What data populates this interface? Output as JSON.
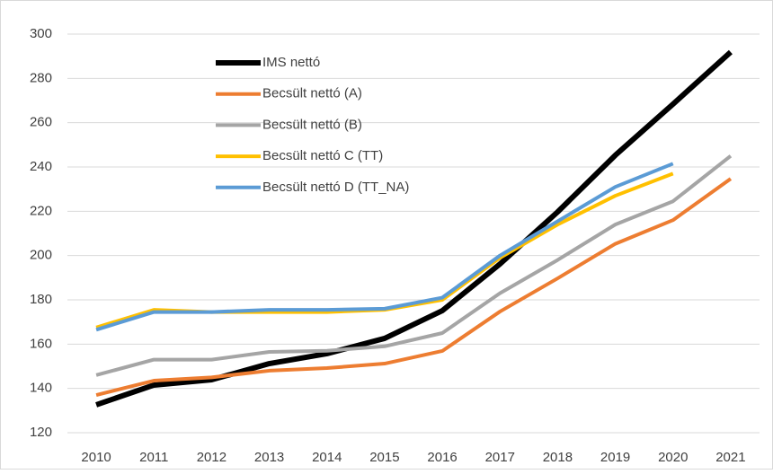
{
  "chart_data": {
    "type": "line",
    "x": [
      2010,
      2011,
      2012,
      2013,
      2014,
      2015,
      2016,
      2017,
      2018,
      2019,
      2020,
      2021
    ],
    "series": [
      {
        "name": "IMS nettó",
        "color": "#000000",
        "values": [
          132.6,
          141.5,
          143.9,
          151.2,
          155.7,
          162.6,
          175.1,
          196.2,
          219.7,
          245.3,
          268.4,
          291.9
        ]
      },
      {
        "name": "Becsült nettó (A)",
        "color": "#ed7d31",
        "values": [
          137,
          143.5,
          145,
          148,
          149.2,
          151.2,
          156.9,
          174.7,
          189.7,
          205.3,
          216,
          234.7
        ]
      },
      {
        "name": "Becsült nettó (B)",
        "color": "#a5a5a5",
        "values": [
          146,
          153,
          153,
          156.5,
          157,
          159,
          165,
          183,
          198,
          214,
          224.5,
          245
        ]
      },
      {
        "name": "Becsült nettó C (TT)",
        "color": "#ffc000",
        "values": [
          167.5,
          175.5,
          174.5,
          174.5,
          174.5,
          175.5,
          180,
          199,
          214,
          227,
          237,
          null
        ]
      },
      {
        "name": "Becsült nettó D (TT_NA)",
        "color": "#5b9bd5",
        "values": [
          166.5,
          174.5,
          174.5,
          175.5,
          175.5,
          176,
          181,
          200,
          215.5,
          231,
          241.5,
          null
        ]
      }
    ],
    "xlim": [
      2009.5,
      2021.5
    ],
    "ylim": [
      120,
      300
    ],
    "yticks": [
      120,
      140,
      160,
      180,
      200,
      220,
      240,
      260,
      280,
      300
    ],
    "grid": true,
    "legend": "top-left"
  }
}
